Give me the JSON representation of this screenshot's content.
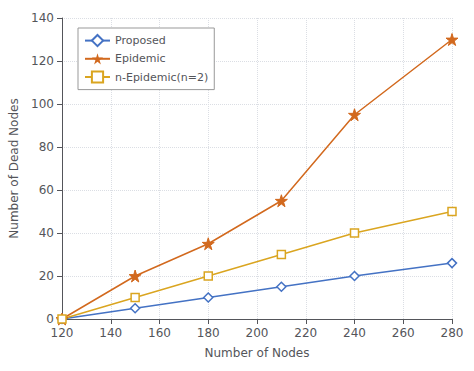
{
  "chart_data": {
    "type": "line",
    "xlabel": "Number of Nodes",
    "ylabel": "Number of Dead Nodes",
    "x": [
      120,
      150,
      180,
      210,
      240,
      280
    ],
    "series": [
      {
        "name": "Proposed",
        "color": "#4472C4",
        "marker": "diamond",
        "values": [
          0,
          5,
          10,
          15,
          20,
          26
        ]
      },
      {
        "name": "Epidemic",
        "color": "#D2691E",
        "marker": "star",
        "values": [
          0,
          20,
          35,
          55,
          95,
          130
        ]
      },
      {
        "name": "n-Epidemic(n=2)",
        "color": "#DAA520",
        "marker": "square",
        "values": [
          0,
          10,
          20,
          30,
          40,
          50
        ]
      }
    ],
    "xlim": [
      120,
      280
    ],
    "ylim": [
      0,
      140
    ],
    "xticks": [
      120,
      140,
      160,
      180,
      200,
      220,
      240,
      260,
      280
    ],
    "yticks": [
      0,
      20,
      40,
      60,
      80,
      100,
      120,
      140
    ],
    "grid": true,
    "legend": "upper left"
  }
}
